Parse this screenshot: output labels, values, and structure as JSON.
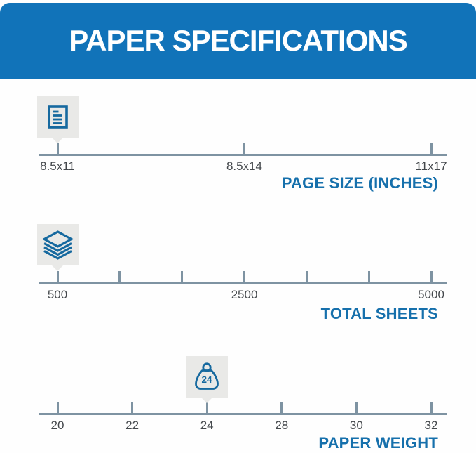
{
  "header": {
    "title": "PAPER SPECIFICATIONS"
  },
  "colors": {
    "banner_blue": "#1173b9",
    "accent_blue": "#16699f",
    "section_label_blue": "#1670ac",
    "track_gray": "#7e93a2",
    "badge_gray": "#e9e9e7",
    "tick_label_gray": "#44484c"
  },
  "sliders": [
    {
      "id": "page-size",
      "axis_label": "PAGE SIZE (INCHES)",
      "icon": "document-icon",
      "selected_index": 0,
      "selected_value": "8.5x11",
      "ticks": [
        "8.5x11",
        "8.5x14",
        "11x17"
      ]
    },
    {
      "id": "total-sheets",
      "axis_label": "TOTAL SHEETS",
      "icon": "stack-icon",
      "selected_index": 0,
      "selected_value": "500",
      "ticks": [
        "500",
        "",
        "",
        "2500",
        "",
        "",
        "5000"
      ]
    },
    {
      "id": "paper-weight",
      "axis_label": "PAPER WEIGHT",
      "icon": "weight-icon",
      "badge_value": "24",
      "selected_index": 2,
      "selected_value": "24",
      "ticks": [
        "20",
        "22",
        "24",
        "28",
        "30",
        "32"
      ]
    }
  ]
}
